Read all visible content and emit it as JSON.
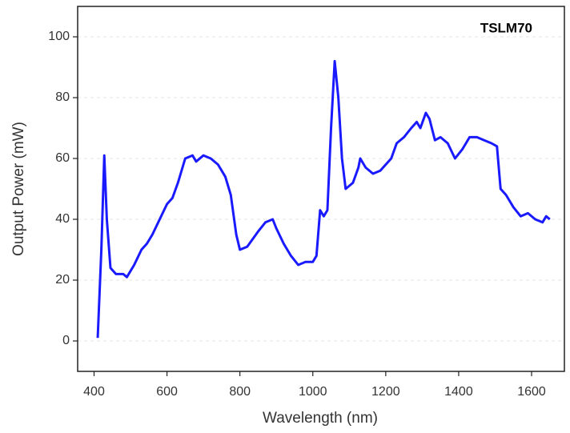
{
  "chart_data": {
    "type": "line",
    "x_label": "Wavelength (nm)",
    "y_label": "Output Power (mW)",
    "x": [
      410,
      420,
      428,
      435,
      445,
      460,
      480,
      490,
      510,
      530,
      545,
      560,
      580,
      600,
      615,
      630,
      650,
      670,
      680,
      700,
      720,
      740,
      760,
      775,
      790,
      800,
      820,
      850,
      870,
      890,
      900,
      920,
      940,
      960,
      980,
      1000,
      1010,
      1020,
      1030,
      1040,
      1050,
      1060,
      1070,
      1080,
      1090,
      1110,
      1125,
      1130,
      1145,
      1165,
      1185,
      1200,
      1215,
      1230,
      1250,
      1270,
      1285,
      1295,
      1310,
      1320,
      1335,
      1350,
      1370,
      1390,
      1410,
      1430,
      1450,
      1470,
      1490,
      1505,
      1515,
      1530,
      1550,
      1570,
      1590,
      1610,
      1630,
      1640,
      1650
    ],
    "series": [
      {
        "name": "TSLM70",
        "color": "#1a1aff",
        "values": [
          1,
          30,
          61,
          40,
          24,
          22,
          22,
          21,
          25,
          30,
          32,
          35,
          40,
          45,
          47,
          52,
          60,
          61,
          59,
          61,
          60,
          58,
          54,
          48,
          35,
          30,
          31,
          36,
          39,
          40,
          37,
          32,
          28,
          25,
          26,
          26,
          28,
          43,
          41,
          43,
          70,
          92,
          80,
          60,
          50,
          52,
          57,
          60,
          57,
          55,
          56,
          58,
          60,
          65,
          67,
          70,
          72,
          70,
          75,
          73,
          66,
          67,
          65,
          60,
          63,
          67,
          67,
          66,
          65,
          64,
          50,
          48,
          44,
          41,
          42,
          40,
          39,
          41,
          40
        ]
      }
    ],
    "xlim": [
      355,
      1690
    ],
    "xticks": [
      400,
      600,
      800,
      1000,
      1200,
      1400,
      1600
    ],
    "ylim": [
      -10,
      110
    ],
    "yticks": [
      0,
      20,
      40,
      60,
      80,
      100
    ],
    "grid": true
  }
}
